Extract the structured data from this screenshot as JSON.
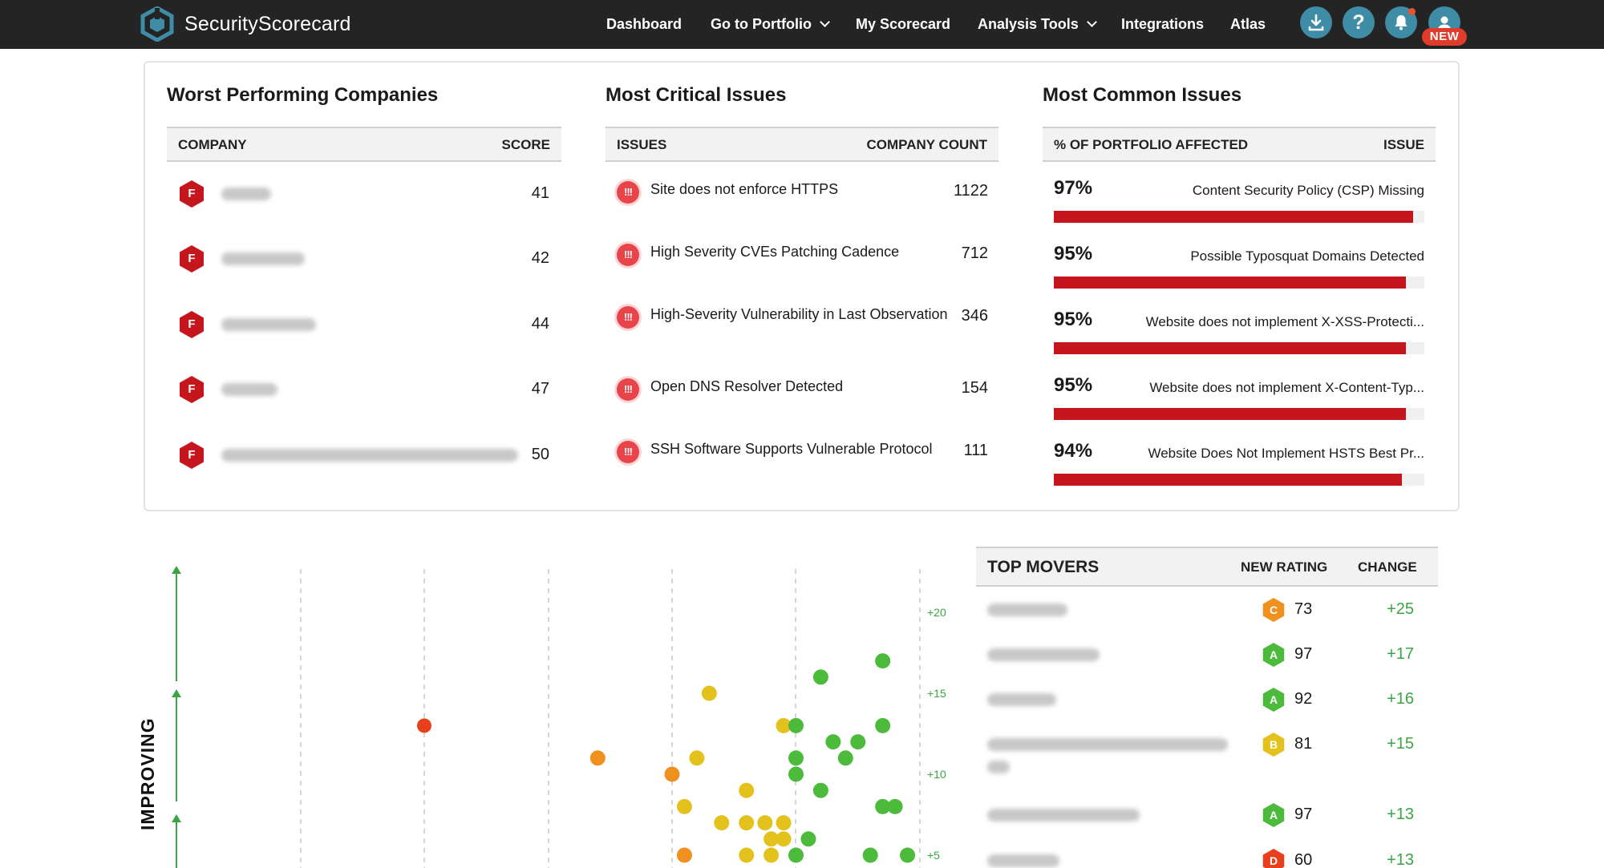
{
  "app": {
    "brand": "SecurityScorecard"
  },
  "nav": {
    "items": [
      {
        "label": "Dashboard",
        "dropdown": false
      },
      {
        "label": "Go to Portfolio",
        "dropdown": true
      },
      {
        "label": "My Scorecard",
        "dropdown": false
      },
      {
        "label": "Analysis Tools",
        "dropdown": true
      },
      {
        "label": "Integrations",
        "dropdown": false
      },
      {
        "label": "Atlas",
        "dropdown": false
      }
    ],
    "actions": [
      {
        "icon": "download-icon"
      },
      {
        "icon": "help-icon",
        "glyph": "?"
      },
      {
        "icon": "bell-icon"
      },
      {
        "icon": "user-avatar-icon"
      }
    ],
    "new_badge": "NEW"
  },
  "worst_companies": {
    "title": "Worst Performing Companies",
    "col_company": "COMPANY",
    "col_score": "SCORE",
    "rows": [
      {
        "grade": "F",
        "score": "41"
      },
      {
        "grade": "F",
        "score": "42"
      },
      {
        "grade": "F",
        "score": "44"
      },
      {
        "grade": "F",
        "score": "47"
      },
      {
        "grade": "F",
        "score": "50"
      }
    ]
  },
  "critical_issues": {
    "title": "Most Critical Issues",
    "col_issues": "ISSUES",
    "col_count": "COMPANY COUNT",
    "icon_glyph": "!!!",
    "rows": [
      {
        "issue": "Site does not enforce HTTPS",
        "count": "1122"
      },
      {
        "issue": "High Severity CVEs Patching Cadence",
        "count": "712"
      },
      {
        "issue": "High-Severity Vulnerability in Last Observation",
        "count": "346"
      },
      {
        "issue": "Open DNS Resolver Detected",
        "count": "154"
      },
      {
        "issue": "SSH Software Supports Vulnerable Protocol",
        "count": "111"
      }
    ]
  },
  "common_issues": {
    "title": "Most Common Issues",
    "col_pct": "% OF PORTFOLIO AFFECTED",
    "col_issue": "ISSUE",
    "rows": [
      {
        "pct": "97%",
        "value": 97,
        "issue": "Content Security Policy (CSP) Missing"
      },
      {
        "pct": "95%",
        "value": 95,
        "issue": "Possible Typosquat Domains Detected"
      },
      {
        "pct": "95%",
        "value": 95,
        "issue": "Website does not implement X-XSS-Protecti..."
      },
      {
        "pct": "95%",
        "value": 95,
        "issue": "Website does not implement X-Content-Typ..."
      },
      {
        "pct": "94%",
        "value": 94,
        "issue": "Website Does Not Implement HSTS Best Pr..."
      }
    ]
  },
  "scatter": {
    "axis_label": "IMPROVING",
    "y_ticks": [
      "+20",
      "+15",
      "+10",
      "+5"
    ],
    "colors": {
      "green": "#4cbb3c",
      "yellow": "#e4c21e",
      "orange": "#f0901e",
      "red": "#e8401c"
    },
    "points": [
      {
        "x": 0,
        "y": 13,
        "c": "red"
      },
      {
        "x": 1.4,
        "y": 11,
        "c": "orange"
      },
      {
        "x": 2,
        "y": 10,
        "c": "orange"
      },
      {
        "x": 2.1,
        "y": 8,
        "c": "yellow"
      },
      {
        "x": 2.1,
        "y": 5,
        "c": "orange"
      },
      {
        "x": 2.3,
        "y": 15,
        "c": "yellow"
      },
      {
        "x": 2.2,
        "y": 11,
        "c": "yellow"
      },
      {
        "x": 2.4,
        "y": 7,
        "c": "yellow"
      },
      {
        "x": 2.6,
        "y": 9,
        "c": "yellow"
      },
      {
        "x": 2.6,
        "y": 7,
        "c": "yellow"
      },
      {
        "x": 2.6,
        "y": 5,
        "c": "yellow"
      },
      {
        "x": 2.75,
        "y": 7,
        "c": "yellow"
      },
      {
        "x": 2.8,
        "y": 6,
        "c": "yellow"
      },
      {
        "x": 2.8,
        "y": 5,
        "c": "yellow"
      },
      {
        "x": 2.9,
        "y": 13,
        "c": "yellow"
      },
      {
        "x": 2.9,
        "y": 7,
        "c": "yellow"
      },
      {
        "x": 2.9,
        "y": 6,
        "c": "yellow"
      },
      {
        "x": 3.0,
        "y": 5,
        "c": "green"
      },
      {
        "x": 3.0,
        "y": 13,
        "c": "green"
      },
      {
        "x": 3.0,
        "y": 11,
        "c": "green"
      },
      {
        "x": 3.0,
        "y": 10,
        "c": "green"
      },
      {
        "x": 3.2,
        "y": 16,
        "c": "green"
      },
      {
        "x": 3.1,
        "y": 6,
        "c": "green"
      },
      {
        "x": 3.2,
        "y": 9,
        "c": "green"
      },
      {
        "x": 3.3,
        "y": 12,
        "c": "green"
      },
      {
        "x": 3.4,
        "y": 11,
        "c": "green"
      },
      {
        "x": 3.5,
        "y": 12,
        "c": "green"
      },
      {
        "x": 3.6,
        "y": 5,
        "c": "green"
      },
      {
        "x": 3.7,
        "y": 17,
        "c": "green"
      },
      {
        "x": 3.7,
        "y": 13,
        "c": "green"
      },
      {
        "x": 3.7,
        "y": 8,
        "c": "green"
      },
      {
        "x": 3.8,
        "y": 8,
        "c": "green"
      },
      {
        "x": 3.9,
        "y": 5,
        "c": "green"
      }
    ]
  },
  "top_movers": {
    "title": "TOP MOVERS",
    "col_rating": "NEW RATING",
    "col_change": "CHANGE",
    "rows": [
      {
        "grade": "C",
        "color": "#f0901e",
        "rating": "73",
        "change": "+25"
      },
      {
        "grade": "A",
        "color": "#4cbb3c",
        "rating": "97",
        "change": "+17"
      },
      {
        "grade": "A",
        "color": "#4cbb3c",
        "rating": "92",
        "change": "+16"
      },
      {
        "grade": "B",
        "color": "#e4c21e",
        "rating": "81",
        "change": "+15"
      },
      {
        "grade": "A",
        "color": "#4cbb3c",
        "rating": "97",
        "change": "+13"
      },
      {
        "grade": "D",
        "color": "#e8401c",
        "rating": "60",
        "change": "+13"
      }
    ]
  }
}
